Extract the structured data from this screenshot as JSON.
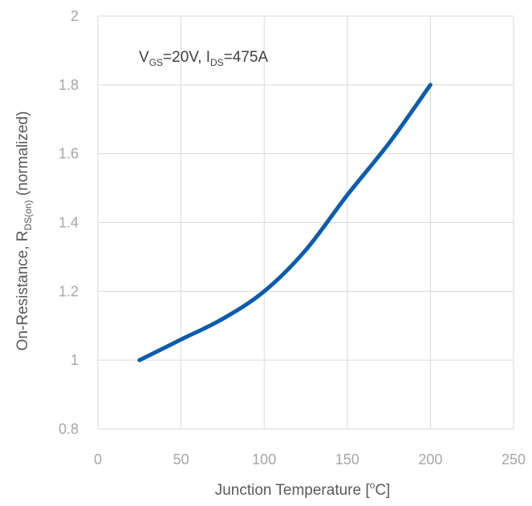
{
  "chart_data": {
    "type": "line",
    "xlabel": "Junction Temperature [°C]",
    "xlabel_parts": {
      "pre": "Junction Temperature [",
      "sup": "o",
      "post": "C]"
    },
    "ylabel": "On-Resistance, R_DS(on) (normalized)",
    "ylabel_parts": {
      "pre": "On-Resistance, R",
      "sub": "DS(on)",
      "post": " (normalized)"
    },
    "annotation": "V_GS=20V, I_DS=475A",
    "annotation_parts": {
      "v": "V",
      "v_sub": "GS",
      "v_val": "=20V, I",
      "i_sub": "DS",
      "i_val": "=475A"
    },
    "xlim": [
      0,
      250
    ],
    "ylim": [
      0.8,
      2
    ],
    "x_ticks": [
      "0",
      "50",
      "100",
      "150",
      "200",
      "250"
    ],
    "y_ticks": [
      "0.8",
      "1",
      "1.2",
      "1.4",
      "1.6",
      "1.8",
      "2"
    ],
    "grid": true,
    "line_color": "#0b5cad",
    "series": [
      {
        "x": [
          25,
          50,
          75,
          100,
          125,
          150,
          175,
          200
        ],
        "values": [
          1.0,
          1.06,
          1.12,
          1.2,
          1.32,
          1.48,
          1.63,
          1.8
        ]
      }
    ]
  }
}
